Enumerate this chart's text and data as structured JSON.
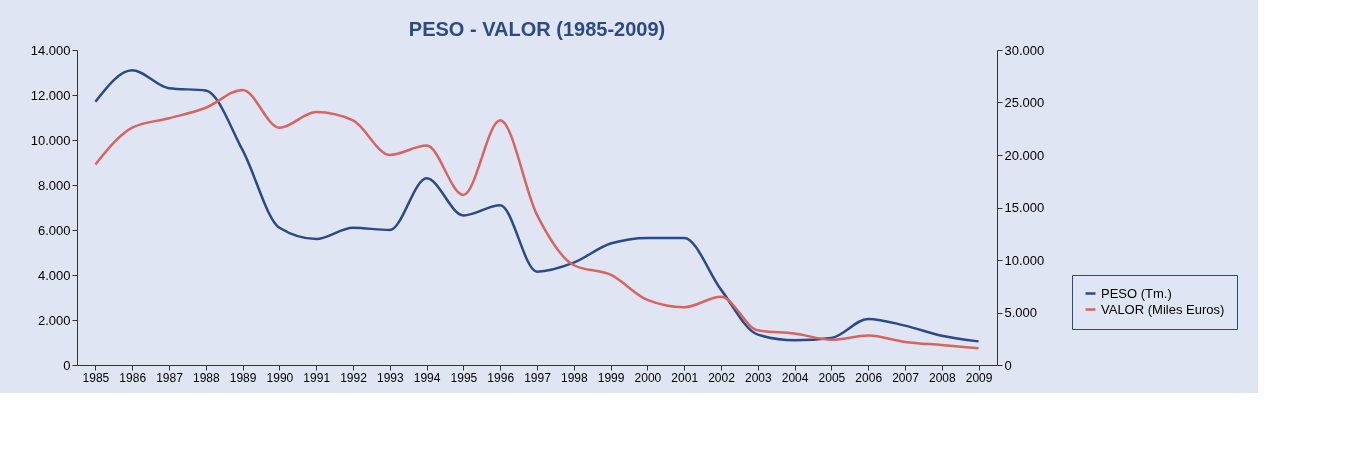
{
  "chart_data": {
    "type": "line",
    "title": "PESO - VALOR (1985-2009)",
    "categories": [
      "1985",
      "1986",
      "1987",
      "1988",
      "1989",
      "1990",
      "1991",
      "1992",
      "1993",
      "1994",
      "1995",
      "1996",
      "1997",
      "1998",
      "1999",
      "2000",
      "2001",
      "2002",
      "2003",
      "2004",
      "2005",
      "2006",
      "2007",
      "2008",
      "2009"
    ],
    "series": [
      {
        "name": "PESO (Tm.)",
        "color": "#2b4a8b",
        "values": [
          11700,
          13100,
          12300,
          12200,
          9550,
          6100,
          5600,
          6100,
          6000,
          8300,
          6650,
          7100,
          4150,
          4550,
          5400,
          5650,
          5650,
          3350,
          1350,
          1100,
          1200,
          2050,
          1750,
          1300,
          1050
        ]
      },
      {
        "name": "VALOR (Miles Euros)",
        "color": "#d9645e",
        "axis": "y2",
        "values": [
          19100,
          22600,
          23500,
          24500,
          26200,
          22600,
          24100,
          23300,
          20000,
          20900,
          16200,
          23300,
          14300,
          9500,
          8600,
          6200,
          5500,
          6500,
          3300,
          3000,
          2400,
          2800,
          2200,
          1900,
          1600
        ]
      }
    ],
    "ylim": [
      0,
      14000
    ],
    "yticks": [
      0,
      {
        "value": 2000,
        "label": "2.000"
      },
      {
        "value": 4000,
        "label": "4.000"
      },
      {
        "value": 6000,
        "label": "6.000"
      },
      {
        "value": 8000,
        "label": "8.000"
      },
      {
        "value": 10000,
        "label": "10.000"
      },
      {
        "value": 12000,
        "label": "12.000"
      },
      {
        "value": 14000,
        "label": "14.000"
      }
    ],
    "y2lim": [
      0,
      30000
    ],
    "y2ticks": [
      0,
      {
        "value": 5000,
        "label": "5.000"
      },
      {
        "value": 10000,
        "label": "10.000"
      },
      {
        "value": 15000,
        "label": "15.000"
      },
      {
        "value": 20000,
        "label": "20.000"
      },
      {
        "value": 25000,
        "label": "25.000"
      },
      {
        "value": 30000,
        "label": "30.000"
      }
    ],
    "grid": false,
    "legend": "bottom right",
    "marker": "none",
    "line_style": "solid"
  }
}
